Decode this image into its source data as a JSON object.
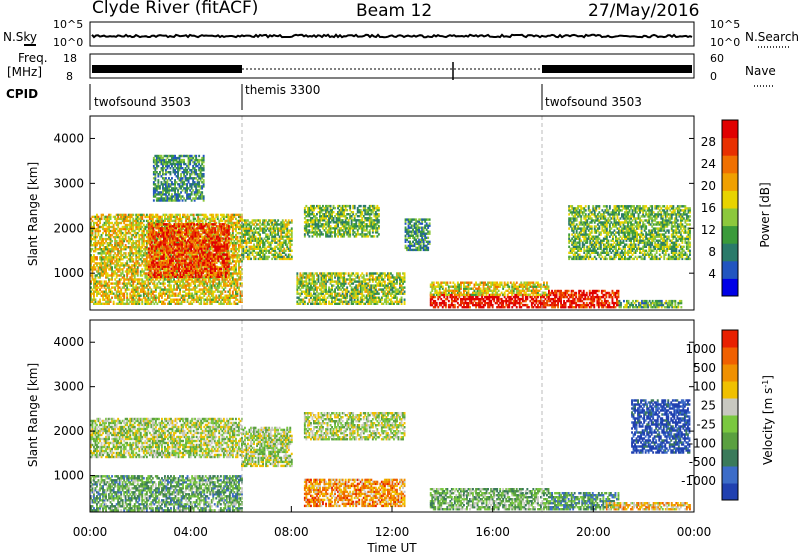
{
  "header": {
    "station": "Clyde River (fitACF)",
    "beam": "Beam 12",
    "date": "27/May/2016"
  },
  "panels": {
    "nsky": {
      "left_label": "N.Sky",
      "right_label": "N.Search",
      "left_ticks": [
        "10^5",
        "10^0"
      ],
      "right_ticks": [
        "10^5",
        "10^0"
      ]
    },
    "freq": {
      "left_label_1": "Freq.",
      "left_label_2": "[MHz]",
      "left_ticks": [
        "18",
        "8"
      ],
      "right_label": "Nave",
      "right_ticks": [
        "60",
        "0"
      ]
    },
    "cpid": {
      "label": "CPID",
      "segments": [
        {
          "name": "twofsound 3503",
          "start": 0,
          "end": 6
        },
        {
          "name": "themis 3300",
          "start": 6,
          "end": 18
        },
        {
          "name": "twofsound 3503",
          "start": 18,
          "end": 24
        }
      ]
    }
  },
  "chart_data": [
    {
      "type": "heatmap",
      "panel": "power",
      "ylabel": "Slant Range [km]",
      "ylim": [
        180,
        4500
      ],
      "yticks": [
        "1000",
        "2000",
        "3000",
        "4000"
      ],
      "colorbar_label": "Power [dB]",
      "colorbar_ticks": [
        "28",
        "24",
        "20",
        "16",
        "12",
        "8",
        "4"
      ],
      "colorbar_colors": [
        "#0000e6",
        "#2255c0",
        "#2a7a6a",
        "#3a9a3a",
        "#8cc83c",
        "#e8d400",
        "#f0a000",
        "#f07000",
        "#e83000",
        "#e00000"
      ],
      "regions": [
        {
          "t0": 0.0,
          "t1": 6.0,
          "r0": 300,
          "r1": 2300,
          "level": 0.55
        },
        {
          "t0": 2.3,
          "t1": 5.5,
          "r0": 900,
          "r1": 2100,
          "level": 0.85
        },
        {
          "t0": 2.5,
          "t1": 4.5,
          "r0": 2600,
          "r1": 3600,
          "level": 0.3
        },
        {
          "t0": 6.0,
          "t1": 8.0,
          "r0": 1300,
          "r1": 2200,
          "level": 0.45
        },
        {
          "t0": 8.5,
          "t1": 11.5,
          "r0": 1800,
          "r1": 2500,
          "level": 0.4
        },
        {
          "t0": 8.2,
          "t1": 12.5,
          "r0": 300,
          "r1": 1000,
          "level": 0.45
        },
        {
          "t0": 12.5,
          "t1": 13.5,
          "r0": 1500,
          "r1": 2200,
          "level": 0.3
        },
        {
          "t0": 13.5,
          "t1": 18.2,
          "r0": 180,
          "r1": 500,
          "level": 0.95
        },
        {
          "t0": 13.5,
          "t1": 18.2,
          "r0": 500,
          "r1": 800,
          "level": 0.55
        },
        {
          "t0": 18.2,
          "t1": 21.0,
          "r0": 180,
          "r1": 600,
          "level": 0.9
        },
        {
          "t0": 19.0,
          "t1": 23.8,
          "r0": 1300,
          "r1": 2500,
          "level": 0.4
        },
        {
          "t0": 21.0,
          "t1": 23.5,
          "r0": 180,
          "r1": 400,
          "level": 0.35
        }
      ]
    },
    {
      "type": "heatmap",
      "panel": "velocity",
      "ylabel": "Slant Range [km]",
      "ylim": [
        180,
        4500
      ],
      "yticks": [
        "1000",
        "2000",
        "3000",
        "4000"
      ],
      "xlabel": "Time UT",
      "xticks": [
        "00:00",
        "04:00",
        "08:00",
        "12:00",
        "16:00",
        "20:00",
        "00:00"
      ],
      "xlim": [
        0,
        24
      ],
      "colorbar_label": "Velocity [m s",
      "colorbar_label_exp": "-1",
      "colorbar_label_end": "]",
      "colorbar_ticks": [
        "1000",
        "500",
        "100",
        "25",
        "-25",
        "-100",
        "-500",
        "-1000"
      ],
      "colorbar_colors": [
        "#2040b0",
        "#3c6cc8",
        "#3a7a5a",
        "#5aa040",
        "#7ac840",
        "#c8c8c0",
        "#f0c000",
        "#f09000",
        "#f06000",
        "#e82000"
      ],
      "regions": [
        {
          "t0": 0.0,
          "t1": 6.0,
          "r0": 1400,
          "r1": 2300,
          "level": 0.5
        },
        {
          "t0": 0.0,
          "t1": 6.0,
          "r0": 200,
          "r1": 1000,
          "level": 0.35
        },
        {
          "t0": 6.0,
          "t1": 8.0,
          "r0": 1200,
          "r1": 2100,
          "level": 0.5
        },
        {
          "t0": 8.5,
          "t1": 12.5,
          "r0": 1800,
          "r1": 2400,
          "level": 0.5
        },
        {
          "t0": 8.5,
          "t1": 12.5,
          "r0": 300,
          "r1": 900,
          "level": 0.75
        },
        {
          "t0": 13.5,
          "t1": 18.2,
          "r0": 180,
          "r1": 700,
          "level": 0.4
        },
        {
          "t0": 18.2,
          "t1": 21.0,
          "r0": 180,
          "r1": 600,
          "level": 0.3
        },
        {
          "t0": 21.5,
          "t1": 23.8,
          "r0": 1500,
          "r1": 2700,
          "level": 0.05
        },
        {
          "t0": 20.5,
          "t1": 23.8,
          "r0": 180,
          "r1": 400,
          "level": 0.65
        }
      ]
    }
  ]
}
